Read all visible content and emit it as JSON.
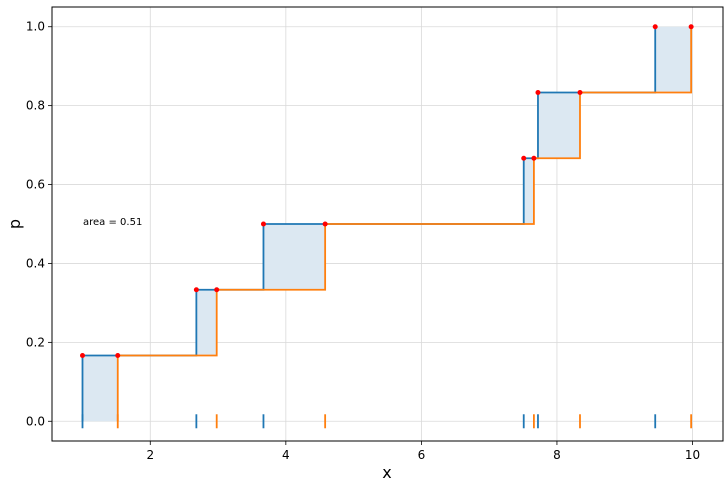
{
  "chart_data": {
    "type": "line",
    "xlabel": "x",
    "ylabel": "p",
    "xlim": [
      0.55,
      10.45
    ],
    "ylim": [
      -0.05,
      1.05
    ],
    "xticks": [
      2,
      4,
      6,
      8,
      10
    ],
    "yticks": [
      0.0,
      0.2,
      0.4,
      0.6,
      0.8,
      1.0
    ],
    "grid": true,
    "annotation": "area = 0.51",
    "area_fill_color": "#dce8f2",
    "series": [
      {
        "color": "#1f77b4",
        "x": [
          1.0,
          2.68,
          3.67,
          7.51,
          7.72,
          9.45
        ],
        "y": [
          0.1667,
          0.3333,
          0.5,
          0.6667,
          0.8333,
          1.0
        ]
      },
      {
        "color": "#ff7f0e",
        "x": [
          1.52,
          2.98,
          4.58,
          7.66,
          8.34,
          9.98
        ],
        "y": [
          0.1667,
          0.3333,
          0.5,
          0.6667,
          0.8333,
          1.0
        ]
      }
    ],
    "highlight_points": {
      "color": "#ff0000",
      "x": [
        1.0,
        1.52,
        2.68,
        2.98,
        3.67,
        4.58,
        7.51,
        7.66,
        7.72,
        8.34,
        9.45,
        9.98
      ],
      "y": [
        0.1667,
        0.1667,
        0.3333,
        0.3333,
        0.5,
        0.5,
        0.6667,
        0.6667,
        0.8333,
        0.8333,
        1.0,
        1.0
      ]
    }
  }
}
